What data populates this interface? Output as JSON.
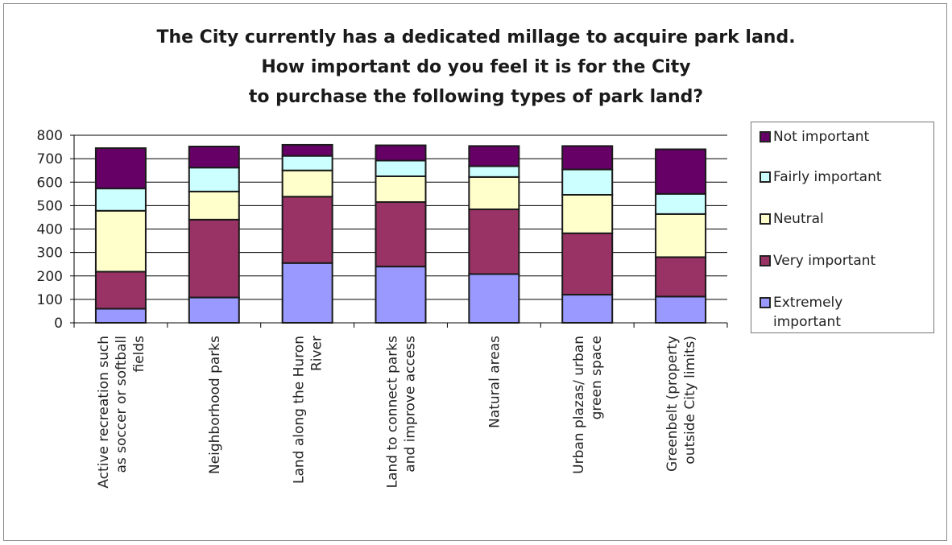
{
  "chart_data": {
    "type": "bar",
    "stacked": true,
    "title_lines": [
      "The City currently has a dedicated millage to acquire park land.",
      "How important do you feel it is for the City",
      "to purchase the following types of park land?"
    ],
    "categories": [
      [
        "Active recreation such",
        "as soccer or softball",
        "fields"
      ],
      [
        "Neighborhood parks"
      ],
      [
        "Land along the Huron",
        "River"
      ],
      [
        "Land to connect parks",
        "and improve access"
      ],
      [
        "Natural areas"
      ],
      [
        "Urban plazas/ urban",
        "green space"
      ],
      [
        "Greenbelt (property",
        "outside City limits)"
      ]
    ],
    "series": [
      {
        "name": "Extremely important",
        "color": "#9999ff",
        "values": [
          60,
          108,
          255,
          240,
          208,
          120,
          112
        ]
      },
      {
        "name": "Very important",
        "color": "#993366",
        "values": [
          158,
          332,
          283,
          275,
          276,
          262,
          168
        ]
      },
      {
        "name": "Neutral",
        "color": "#ffffcc",
        "values": [
          260,
          120,
          112,
          110,
          138,
          164,
          184
        ]
      },
      {
        "name": "Fairly important",
        "color": "#ccffff",
        "values": [
          95,
          102,
          62,
          67,
          46,
          108,
          86
        ]
      },
      {
        "name": "Not important",
        "color": "#660066",
        "values": [
          172,
          90,
          47,
          65,
          86,
          100,
          190
        ]
      }
    ],
    "legend_order": [
      "Not important",
      "Fairly important",
      "Neutral",
      "Very important",
      "Extremely important"
    ],
    "legend_lines": {
      "Not important": [
        "Not important"
      ],
      "Fairly important": [
        "Fairly important"
      ],
      "Neutral": [
        "Neutral"
      ],
      "Very important": [
        "Very important"
      ],
      "Extremely important": [
        "Extremely",
        "important"
      ]
    },
    "ylim": [
      0,
      800
    ],
    "yticks": [
      0,
      100,
      200,
      300,
      400,
      500,
      600,
      700,
      800
    ],
    "grid": true,
    "legend_position": "right"
  }
}
